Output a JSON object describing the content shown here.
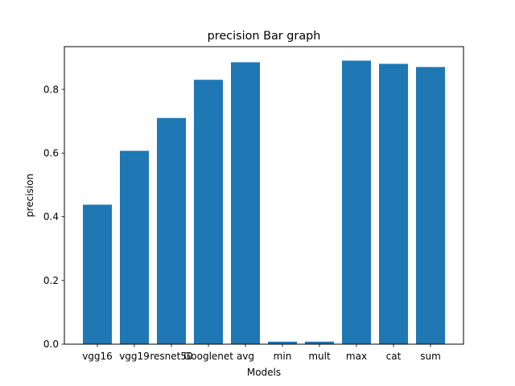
{
  "chart_data": {
    "type": "bar",
    "title": "precision Bar graph",
    "xlabel": "Models",
    "ylabel": "precision",
    "categories": [
      "vgg16",
      "vgg19",
      "resnet50",
      "Googlenet",
      "avg",
      "min",
      "mult",
      "max",
      "cat",
      "sum"
    ],
    "values": [
      0.438,
      0.607,
      0.71,
      0.83,
      0.885,
      0.008,
      0.008,
      0.89,
      0.88,
      0.87
    ],
    "ylim": [
      0,
      0.934
    ],
    "yticks": [
      0.0,
      0.2,
      0.4,
      0.6,
      0.8
    ],
    "ytick_labels": [
      "0.0",
      "0.2",
      "0.4",
      "0.6",
      "0.8"
    ],
    "bar_color": "#1f77b4",
    "grid": false,
    "legend": "none"
  }
}
